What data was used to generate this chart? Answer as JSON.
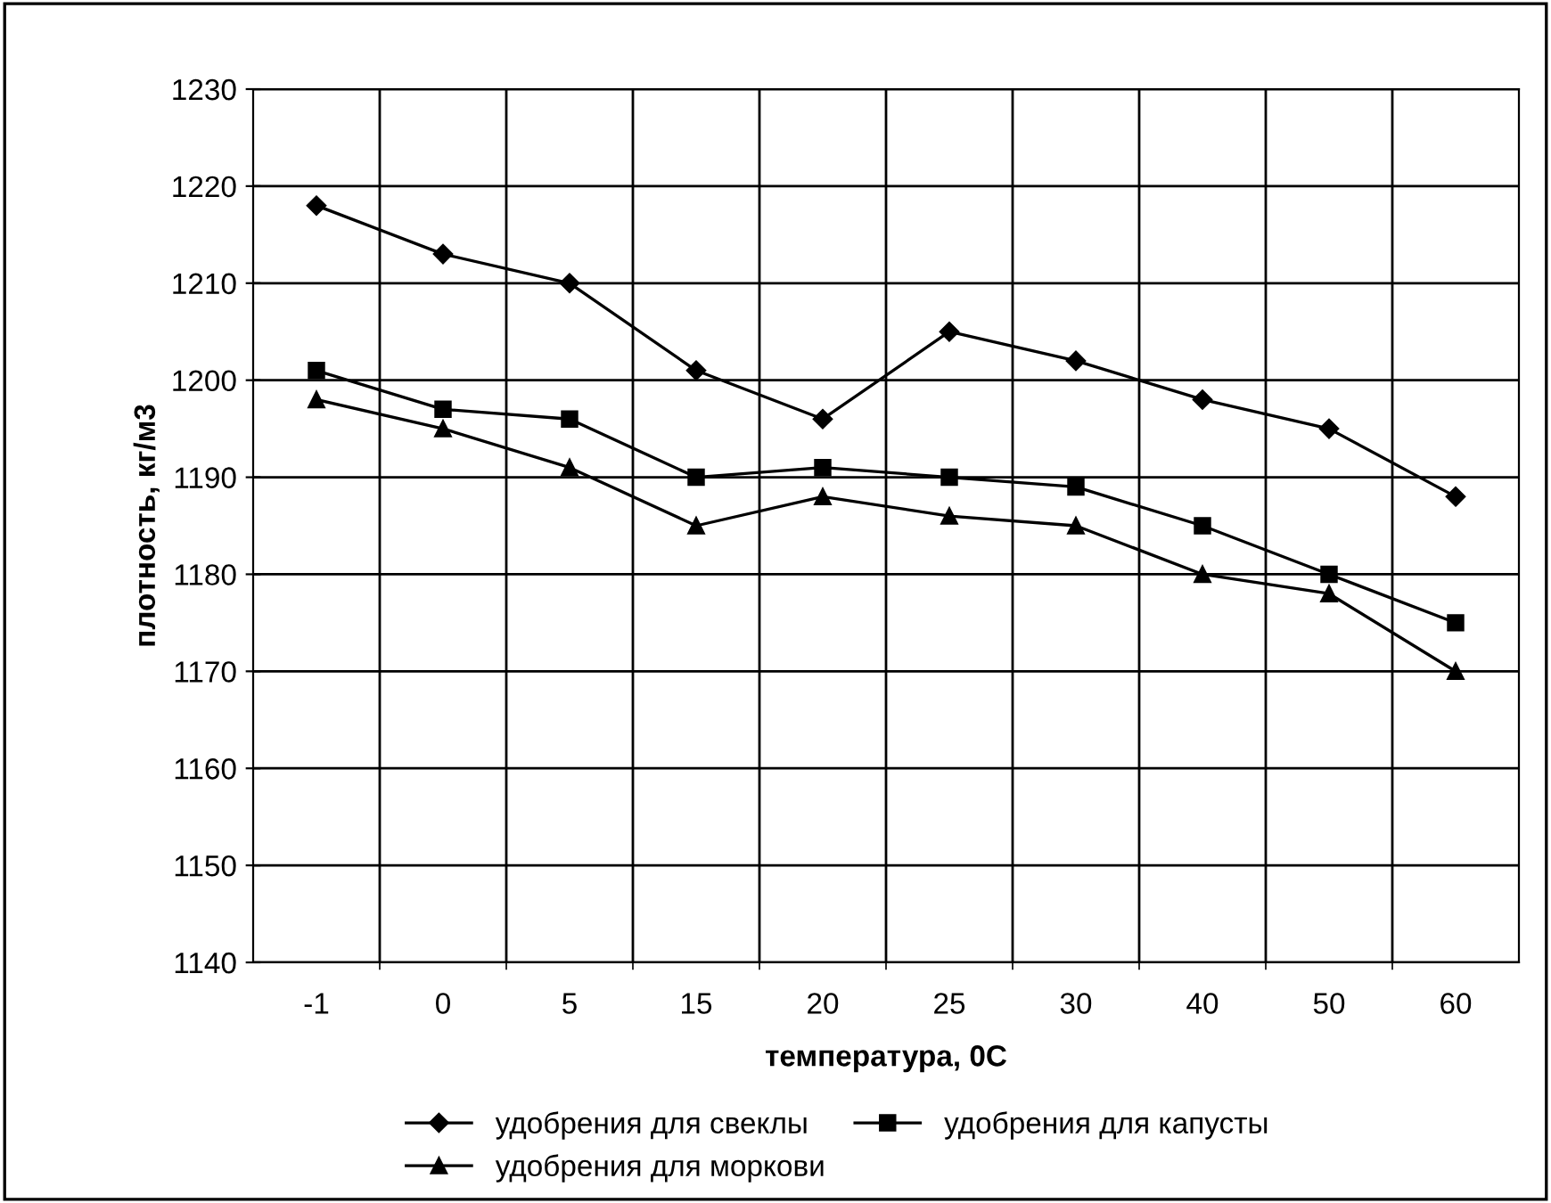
{
  "chart_data": {
    "type": "line",
    "xlabel": "температура, 0С",
    "ylabel": "плотность, кг/м3",
    "categories": [
      "-1",
      "0",
      "5",
      "15",
      "20",
      "25",
      "30",
      "40",
      "50",
      "60"
    ],
    "series": [
      {
        "name": "удобрения для свеклы",
        "color": "#000000",
        "marker": "diamond",
        "values": [
          1218,
          1213,
          1210,
          1201,
          1196,
          1205,
          1202,
          1198,
          1195,
          1188
        ]
      },
      {
        "name": "удобрения для капусты",
        "color": "#000000",
        "marker": "square",
        "values": [
          1201,
          1197,
          1196,
          1190,
          1191,
          1190,
          1189,
          1185,
          1180,
          1175
        ]
      },
      {
        "name": "удобрения для моркови",
        "color": "#000000",
        "marker": "triangle",
        "values": [
          1198,
          1195,
          1191,
          1185,
          1188,
          1186,
          1185,
          1180,
          1178,
          1170
        ]
      }
    ],
    "ylim": [
      1140,
      1230
    ],
    "yticks": [
      1140,
      1150,
      1160,
      1170,
      1180,
      1190,
      1200,
      1210,
      1220,
      1230
    ],
    "grid": true,
    "legend": "bottom",
    "line_style": "solid"
  }
}
